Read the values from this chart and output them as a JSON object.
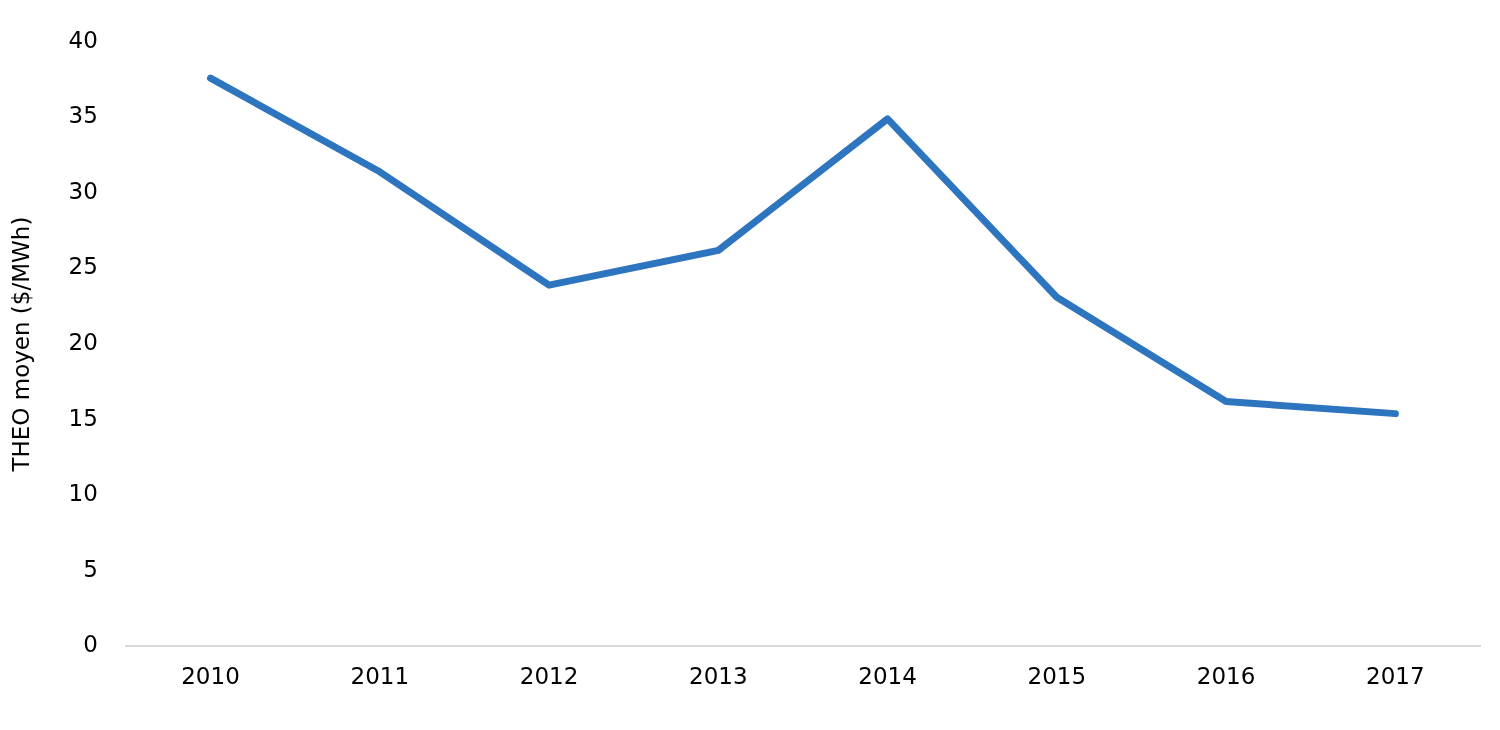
{
  "chart_data": {
    "type": "line",
    "ylabel": "THEO moyen ($/MWh)",
    "categories": [
      "2010",
      "2011",
      "2012",
      "2013",
      "2014",
      "2015",
      "2016",
      "2017"
    ],
    "series": [
      {
        "color": "#2e75c0",
        "values": [
          37.6,
          31.4,
          23.9,
          26.2,
          34.9,
          23.1,
          16.2,
          15.4
        ]
      }
    ],
    "ylim": [
      0,
      40
    ],
    "yticks": [
      0,
      5,
      10,
      15,
      20,
      25,
      30,
      35,
      40
    ],
    "grid": false,
    "legend": false,
    "marker": "none",
    "line_style": "solid"
  }
}
